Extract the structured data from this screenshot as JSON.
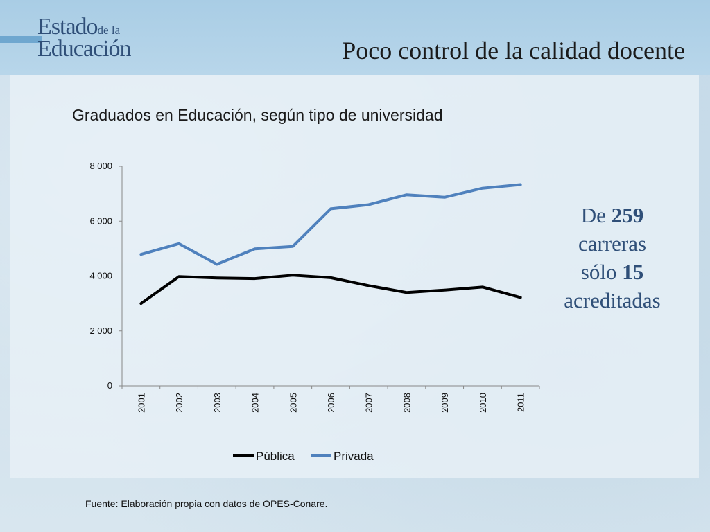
{
  "header": {
    "logo_line1": "Estado",
    "logo_line1_small": "de la",
    "logo_line2": "Educación",
    "title": "Poco control de la calidad docente"
  },
  "colors": {
    "publica": "#000000",
    "privada": "#4f81bd",
    "logo": "#2f4f78",
    "note": "#2f4f78"
  },
  "chart_data": {
    "type": "line",
    "title": "Graduados en Educación, según tipo de universidad",
    "xlabel": "",
    "ylabel": "",
    "categories": [
      "2001",
      "2002",
      "2003",
      "2004",
      "2005",
      "2006",
      "2007",
      "2008",
      "2009",
      "2010",
      "2011"
    ],
    "series": [
      {
        "name": "Pública",
        "values": [
          3000,
          3980,
          3930,
          3910,
          4030,
          3940,
          3650,
          3400,
          3490,
          3600,
          3220
        ]
      },
      {
        "name": "Privada",
        "values": [
          4790,
          5180,
          4430,
          4990,
          5080,
          6450,
          6600,
          6960,
          6870,
          7200,
          7330
        ]
      }
    ],
    "ylim": [
      0,
      8000
    ],
    "yticks": [
      0,
      2000,
      4000,
      6000,
      8000
    ],
    "ytick_labels": [
      "0",
      "2 000",
      "4 000",
      "6 000",
      "8 000"
    ],
    "grid": false,
    "legend": "bottom"
  },
  "note": {
    "w1": "De",
    "n1": "259",
    "w2": "carreras",
    "w3": "sólo",
    "n2": "15",
    "w4": "acreditadas"
  },
  "source": "Fuente: Elaboración propia con datos de OPES-Conare."
}
